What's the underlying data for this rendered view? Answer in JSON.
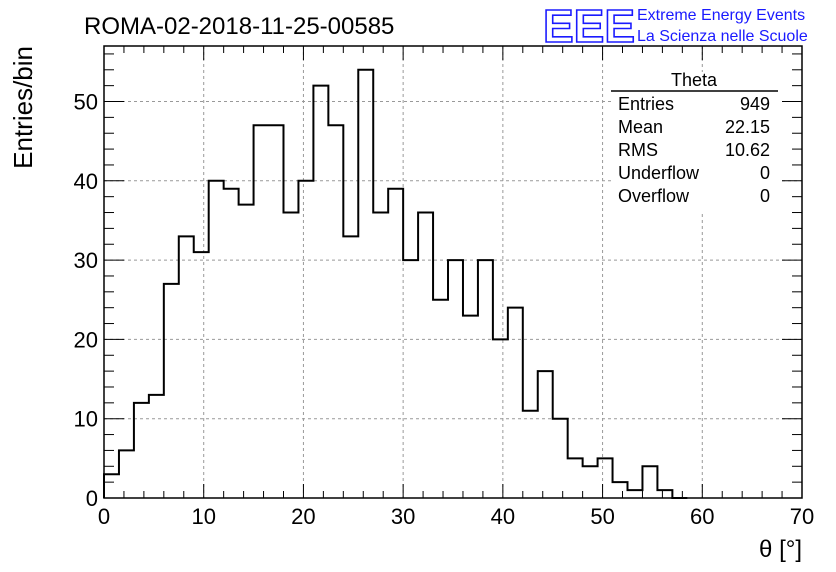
{
  "logo": {
    "letters": "EEE",
    "line1": "Extreme Energy Events",
    "line2": "La Scienza nelle Scuole",
    "color": "#1a1aff"
  },
  "chart_data": {
    "type": "histogram",
    "title": "ROMA-02-2018-11-25-00585",
    "xlabel": "θ [°]",
    "ylabel": "Entries/bin",
    "xlim": [
      0,
      70
    ],
    "ylim": [
      0,
      57
    ],
    "x_ticks": [
      0,
      10,
      20,
      30,
      40,
      50,
      60,
      70
    ],
    "y_ticks": [
      0,
      10,
      20,
      30,
      40,
      50
    ],
    "grid": true,
    "bin_width": 1.5,
    "bin_start": 0,
    "values": [
      3,
      6,
      12,
      13,
      27,
      33,
      31,
      40,
      39,
      37,
      47,
      47,
      36,
      40,
      52,
      47,
      33,
      54,
      36,
      39,
      30,
      36,
      25,
      30,
      23,
      30,
      20,
      24,
      11,
      16,
      10,
      5,
      4,
      5,
      2,
      1,
      4,
      1,
      0
    ],
    "stats_box": {
      "title": "Theta",
      "position": "top-right",
      "rows": [
        {
          "label": "Entries",
          "value": "949"
        },
        {
          "label": "Mean",
          "value": "22.15"
        },
        {
          "label": "RMS",
          "value": "10.62"
        },
        {
          "label": "Underflow",
          "value": "0"
        },
        {
          "label": "Overflow",
          "value": "0"
        }
      ]
    }
  }
}
